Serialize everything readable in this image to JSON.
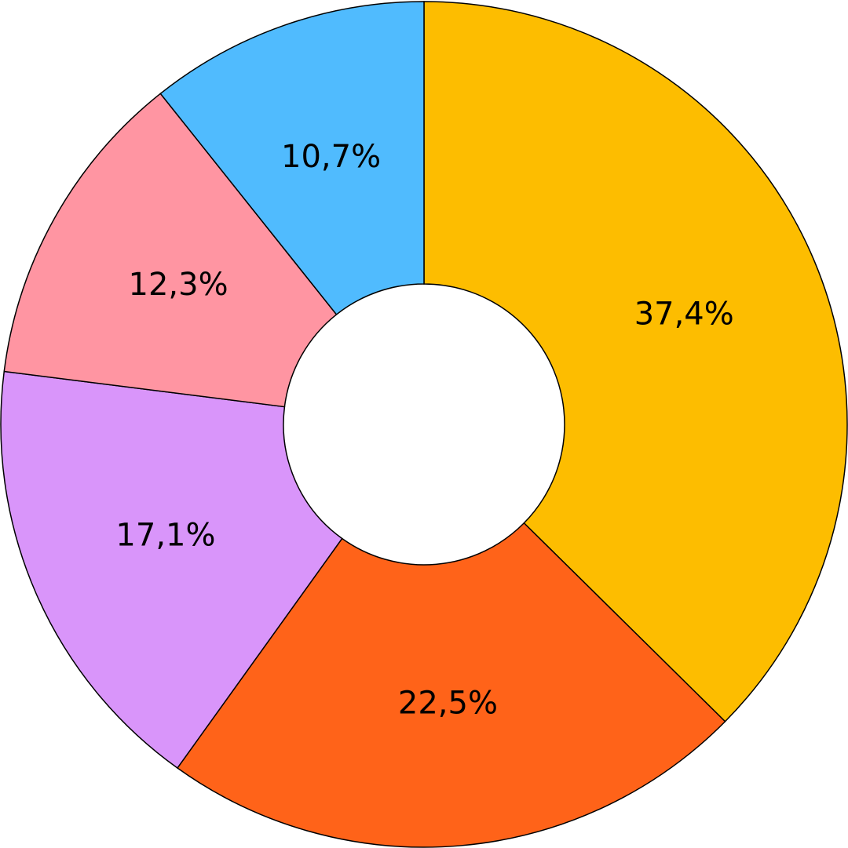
{
  "chart_data": {
    "type": "pie",
    "values": [
      37.4,
      22.5,
      17.1,
      12.3,
      10.7
    ],
    "value_labels": [
      "37,4%",
      "22,5%",
      "17,1%",
      "12,3%",
      "10,7%"
    ],
    "colors": [
      "#fdbd00",
      "#ff6319",
      "#d995fa",
      "#ff95a2",
      "#50bbfe"
    ]
  }
}
